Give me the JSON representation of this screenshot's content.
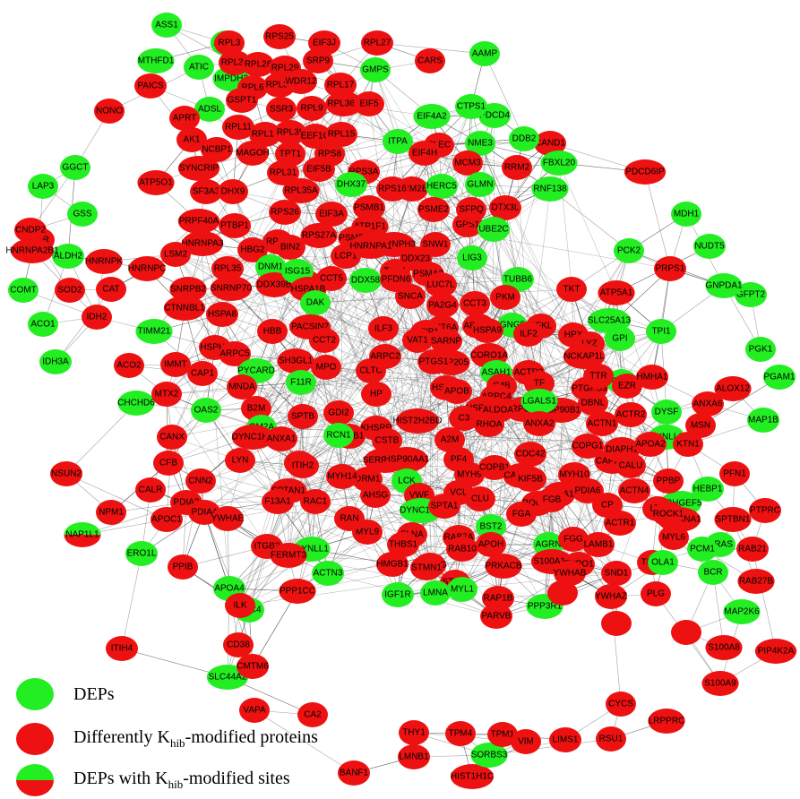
{
  "colors": {
    "red": "#ee1111",
    "green": "#22ee22",
    "edge": "#555555",
    "split_top": "#22ee22",
    "split_bottom": "#ee1111"
  },
  "legend": {
    "deps": "DEPs",
    "khib_prefix": "Differently K",
    "khib_sub": "hib",
    "khib_suffix": "-modified proteins",
    "mixed_prefix": "DEPs with K",
    "mixed_sub": "hib",
    "mixed_suffix": "-modified sites"
  },
  "nodes": [
    {
      "label": "ASS1",
      "c": "g"
    },
    {
      "label": "ADSS",
      "c": "g"
    },
    {
      "label": "MTHFD1",
      "c": "g"
    },
    {
      "label": "ATIC",
      "c": "g"
    },
    {
      "label": "PAICS",
      "c": "r"
    },
    {
      "label": "IMPDH2",
      "c": "g"
    },
    {
      "label": "ADSL",
      "c": "g"
    },
    {
      "label": "APRT",
      "c": "r"
    },
    {
      "label": "NONO",
      "c": "r"
    },
    {
      "label": "GGCT",
      "c": "g"
    },
    {
      "label": "LAP3",
      "c": "g"
    },
    {
      "label": "GSS",
      "c": "g"
    },
    {
      "label": "GSR",
      "c": "r"
    },
    {
      "label": "CNDP2",
      "c": "r"
    },
    {
      "label": "ALDH2",
      "c": "g"
    },
    {
      "label": "COMT",
      "c": "g"
    },
    {
      "label": "SOD2",
      "c": "r"
    },
    {
      "label": "ACO1",
      "c": "g"
    },
    {
      "label": "IDH2",
      "c": "r"
    },
    {
      "label": "IDH3A",
      "c": "g"
    },
    {
      "label": "CAT",
      "c": "r"
    },
    {
      "label": "ACO2",
      "c": "r"
    },
    {
      "label": "TIMM21",
      "c": "g"
    },
    {
      "label": "CHCHD6",
      "c": "g"
    },
    {
      "label": "MTX2",
      "c": "r"
    },
    {
      "label": "IMMT",
      "c": "r"
    },
    {
      "label": "NSUN2",
      "c": "r"
    },
    {
      "label": "NAP1L1",
      "c": "s"
    },
    {
      "label": "NPM1",
      "c": "r"
    },
    {
      "label": "ERO1L",
      "c": "g"
    },
    {
      "label": "PPIB",
      "c": "r"
    },
    {
      "label": "APOC1",
      "c": "r"
    },
    {
      "label": "CANX",
      "c": "r"
    },
    {
      "label": "CFB",
      "c": "r"
    },
    {
      "label": "CALR",
      "c": "r"
    },
    {
      "label": "PDIA3",
      "c": "r"
    },
    {
      "label": "PDIA4",
      "c": "r"
    },
    {
      "label": "ITIH4",
      "c": "r"
    },
    {
      "label": "APOA4",
      "c": "g"
    },
    {
      "label": "GPC4",
      "c": "g"
    },
    {
      "label": "CD38",
      "c": "r"
    },
    {
      "label": "SLC44A2",
      "c": "g"
    },
    {
      "label": "CMTM6",
      "c": "r"
    },
    {
      "label": "VAPA",
      "c": "r"
    },
    {
      "label": "CA2",
      "c": "r"
    },
    {
      "label": "THY1",
      "c": "r"
    },
    {
      "label": "TPM4",
      "c": "r"
    },
    {
      "label": "LMNB1",
      "c": "r"
    },
    {
      "label": "HIST1H1C",
      "c": "r"
    },
    {
      "label": "BANF1",
      "c": "r"
    },
    {
      "label": "SORBS3",
      "c": "g"
    },
    {
      "label": "TPM1",
      "c": "r"
    },
    {
      "label": "VIM",
      "c": "r"
    },
    {
      "label": "LIMS1",
      "c": "r"
    },
    {
      "label": "RSU1",
      "c": "r"
    },
    {
      "label": "CYCS",
      "c": "r"
    },
    {
      "label": "LRPPRC",
      "c": "r"
    },
    {
      "label": "S100A9",
      "c": "r"
    },
    {
      "label": "S100A8",
      "c": "r"
    },
    {
      "label": "PIP4K2A",
      "c": "r"
    },
    {
      "label": "MAP2K6",
      "c": "g"
    },
    {
      "label": "RAB27B",
      "c": "r"
    },
    {
      "label": "RAB21",
      "c": "r"
    },
    {
      "label": "PTPRC",
      "c": "r"
    },
    {
      "label": "MAP1B",
      "c": "g"
    },
    {
      "label": "PFN1",
      "c": "r"
    },
    {
      "label": "SPTBN1",
      "c": "r"
    },
    {
      "label": "PGAM1",
      "c": "g"
    },
    {
      "label": "PGK1",
      "c": "g"
    },
    {
      "label": "GFPT2",
      "c": "g"
    },
    {
      "label": "GNPDA1",
      "c": "g"
    },
    {
      "label": "NUDT5",
      "c": "g"
    },
    {
      "label": "MDH1",
      "c": "g"
    },
    {
      "label": "PRPS1",
      "c": "r"
    },
    {
      "label": "PCK2",
      "c": "g"
    },
    {
      "label": "PDCD6IP",
      "c": "r"
    },
    {
      "label": "PDCD4",
      "c": "g"
    },
    {
      "label": "AAMP",
      "c": "g"
    },
    {
      "label": "CAND1",
      "c": "r"
    },
    {
      "label": "DDB2",
      "c": "g"
    },
    {
      "label": "FBXL20",
      "c": "g"
    },
    {
      "label": "RNF138",
      "c": "g"
    },
    {
      "label": "DTX3L",
      "c": "r"
    },
    {
      "label": "GPS1",
      "c": "r"
    },
    {
      "label": "UBE2C",
      "c": "g"
    },
    {
      "label": "LIG3",
      "c": "g"
    },
    {
      "label": "TUBB6",
      "c": "g"
    },
    {
      "label": "GNG5",
      "c": "g"
    },
    {
      "label": "CGN",
      "c": "g"
    },
    {
      "label": "GPI",
      "c": "g"
    },
    {
      "label": "TPI1",
      "c": "g"
    },
    {
      "label": "ALOX12",
      "c": "r"
    },
    {
      "label": "ANXA6",
      "c": "r"
    },
    {
      "label": "MSN",
      "c": "r"
    },
    {
      "label": "DYSF",
      "c": "g"
    },
    {
      "label": "DYNLL2",
      "c": "g"
    },
    {
      "label": "ARHGEF5",
      "c": "g"
    },
    {
      "label": "RRAS",
      "c": "g"
    },
    {
      "label": "BCR",
      "c": "g"
    },
    {
      "label": "PCM1",
      "c": "g"
    },
    {
      "label": "RPL3",
      "c": "r"
    },
    {
      "label": "RPS25",
      "c": "r"
    },
    {
      "label": "EIF3J",
      "c": "r"
    },
    {
      "label": "RPL27",
      "c": "r"
    },
    {
      "label": "RPL30",
      "c": "r"
    },
    {
      "label": "RPL26",
      "c": "r"
    },
    {
      "label": "RPL29",
      "c": "r"
    },
    {
      "label": "SRP9",
      "c": "r"
    },
    {
      "label": "GMPS",
      "c": "g"
    },
    {
      "label": "CARS",
      "c": "r"
    },
    {
      "label": "RPL6",
      "c": "r"
    },
    {
      "label": "RPL32",
      "c": "r"
    },
    {
      "label": "WDR12",
      "c": "r"
    },
    {
      "label": "RPL17",
      "c": "r"
    },
    {
      "label": "GSPT1",
      "c": "r"
    },
    {
      "label": "SSR3",
      "c": "r"
    },
    {
      "label": "RPL9",
      "c": "r"
    },
    {
      "label": "RPL36A",
      "c": "r"
    },
    {
      "label": "EIF5",
      "c": "r"
    },
    {
      "label": "CTPS1",
      "c": "g"
    },
    {
      "label": "EIF4A2",
      "c": "g"
    },
    {
      "label": "NME3",
      "c": "g"
    },
    {
      "label": "RPL11",
      "c": "r"
    },
    {
      "label": "RPL19",
      "c": "r"
    },
    {
      "label": "RPL3L",
      "c": "r"
    },
    {
      "label": "EEF1G",
      "c": "r"
    },
    {
      "label": "RPL15",
      "c": "r"
    },
    {
      "label": "ITPA",
      "c": "g"
    },
    {
      "label": "PLEC",
      "c": "r"
    },
    {
      "label": "AK1",
      "c": "r"
    },
    {
      "label": "NCBP1",
      "c": "r"
    },
    {
      "label": "MAGOH",
      "c": "r"
    },
    {
      "label": "TPT1",
      "c": "r"
    },
    {
      "label": "RPS8",
      "c": "r"
    },
    {
      "label": "EIF4H",
      "c": "r"
    },
    {
      "label": "MCM3",
      "c": "r"
    },
    {
      "label": "RRM2",
      "c": "r"
    },
    {
      "label": "SYNCRIP",
      "c": "r"
    },
    {
      "label": "RPL31",
      "c": "r"
    },
    {
      "label": "EIF5B",
      "c": "r"
    },
    {
      "label": "RPS3A",
      "c": "r"
    },
    {
      "label": "RRM2B",
      "c": "r"
    },
    {
      "label": "SF3A3",
      "c": "r"
    },
    {
      "label": "DHX9",
      "c": "r"
    },
    {
      "label": "RPL35A",
      "c": "r"
    },
    {
      "label": "DHX37",
      "c": "g"
    },
    {
      "label": "RPS16",
      "c": "r"
    },
    {
      "label": "HERC5",
      "c": "g"
    },
    {
      "label": "GLMN",
      "c": "g"
    },
    {
      "label": "ATP5O1",
      "c": "r"
    },
    {
      "label": "PRPF40A",
      "c": "r"
    },
    {
      "label": "RPS26",
      "c": "r"
    },
    {
      "label": "EIF3A",
      "c": "r"
    },
    {
      "label": "PSMB1",
      "c": "r"
    },
    {
      "label": "PSME2",
      "c": "r"
    },
    {
      "label": "SFPQ",
      "c": "r"
    },
    {
      "label": "HNRNPA3",
      "c": "r"
    },
    {
      "label": "PTBP1",
      "c": "r"
    },
    {
      "label": "RPS9",
      "c": "r"
    },
    {
      "label": "RPS27A",
      "c": "r"
    },
    {
      "label": "ATP1F1",
      "c": "r"
    },
    {
      "label": "HNRNPA2B1",
      "c": "r"
    },
    {
      "label": "LSM2",
      "c": "r"
    },
    {
      "label": "HBG2",
      "c": "r"
    },
    {
      "label": "BIN2",
      "c": "r"
    },
    {
      "label": "PSMB10",
      "c": "r"
    },
    {
      "label": "HNRNPH3",
      "c": "r"
    },
    {
      "label": "SNW1",
      "c": "r"
    },
    {
      "label": "HNRNPK",
      "c": "r"
    },
    {
      "label": "HNRNPC",
      "c": "r"
    },
    {
      "label": "RPL35",
      "c": "r"
    },
    {
      "label": "DNM1",
      "c": "g"
    },
    {
      "label": "LCP1",
      "c": "r"
    },
    {
      "label": "HNRNPA1",
      "c": "r"
    },
    {
      "label": "DDX23",
      "c": "r"
    },
    {
      "label": "HBA1",
      "c": "r"
    },
    {
      "label": "CCT5",
      "c": "r"
    },
    {
      "label": "TCP1",
      "c": "r"
    },
    {
      "label": "PSMA3",
      "c": "r"
    },
    {
      "label": "LUC7L",
      "c": "r"
    },
    {
      "label": "SNRPB2",
      "c": "r"
    },
    {
      "label": "SNRNP70",
      "c": "r"
    },
    {
      "label": "DDX39B",
      "c": "r"
    },
    {
      "label": "ISG15",
      "c": "g"
    },
    {
      "label": "DDX58",
      "c": "g"
    },
    {
      "label": "PFDN6",
      "c": "r"
    },
    {
      "label": "SNCA",
      "c": "r"
    },
    {
      "label": "CCT3",
      "c": "r"
    },
    {
      "label": "PKM",
      "c": "r"
    },
    {
      "label": "TKT",
      "c": "r"
    },
    {
      "label": "ATP5A1",
      "c": "r"
    },
    {
      "label": "CTNNBL1",
      "c": "r"
    },
    {
      "label": "HSPA8",
      "c": "r"
    },
    {
      "label": "HSPA1B",
      "c": "r"
    },
    {
      "label": "DAK",
      "c": "g"
    },
    {
      "label": "PA2G4",
      "c": "r"
    },
    {
      "label": "CCT6A",
      "c": "r"
    },
    {
      "label": "ARPC3",
      "c": "r"
    },
    {
      "label": "PFKL",
      "c": "r"
    },
    {
      "label": "SLC25A13",
      "c": "g"
    },
    {
      "label": "HSPH1",
      "c": "r"
    },
    {
      "label": "HBB",
      "c": "r"
    },
    {
      "label": "PACSIN2",
      "c": "r"
    },
    {
      "label": "ILF3",
      "c": "r"
    },
    {
      "label": "STIP1",
      "c": "r"
    },
    {
      "label": "ARPC5",
      "c": "r"
    },
    {
      "label": "CCT2",
      "c": "r"
    },
    {
      "label": "VAT1",
      "c": "r"
    },
    {
      "label": "SARNP",
      "c": "r"
    },
    {
      "label": "HSPA9",
      "c": "r"
    },
    {
      "label": "ILF2",
      "c": "r"
    },
    {
      "label": "HPX",
      "c": "r"
    },
    {
      "label": "LYZ",
      "c": "r"
    },
    {
      "label": "CAP1",
      "c": "r"
    },
    {
      "label": "PYCARD",
      "c": "g"
    },
    {
      "label": "SH3GL1",
      "c": "r"
    },
    {
      "label": "CLTC",
      "c": "r"
    },
    {
      "label": "ARPC2",
      "c": "r"
    },
    {
      "label": "NUP205",
      "c": "r"
    },
    {
      "label": "CORO1A",
      "c": "r"
    },
    {
      "label": "ASAH1",
      "c": "g"
    },
    {
      "label": "ACTR3",
      "c": "r"
    },
    {
      "label": "NCKAP1L",
      "c": "r"
    },
    {
      "label": "MNDA",
      "c": "r"
    },
    {
      "label": "F11R",
      "c": "g"
    },
    {
      "label": "MPO",
      "c": "r"
    },
    {
      "label": "PTGS1",
      "c": "r"
    },
    {
      "label": "HSPA5",
      "c": "r"
    },
    {
      "label": "C4B",
      "c": "r"
    },
    {
      "label": "TF",
      "c": "r"
    },
    {
      "label": "PTGES3",
      "c": "r"
    },
    {
      "label": "TTR",
      "c": "r"
    },
    {
      "label": "OAS2",
      "c": "g"
    },
    {
      "label": "B2M",
      "c": "r"
    },
    {
      "label": "HP",
      "c": "r"
    },
    {
      "label": "APOB",
      "c": "r"
    },
    {
      "label": "ARPC4",
      "c": "r"
    },
    {
      "label": "ARPC1B",
      "c": "r"
    },
    {
      "label": "HSP90B1",
      "c": "r"
    },
    {
      "label": "GM2A",
      "c": "g"
    },
    {
      "label": "SPTB",
      "c": "r"
    },
    {
      "label": "GDI2",
      "c": "r"
    },
    {
      "label": "KHSRP",
      "c": "r"
    },
    {
      "label": "HIST2H2BD",
      "c": "r"
    },
    {
      "label": "HSP90B1",
      "c": "r"
    },
    {
      "label": "LGALS1",
      "c": "g"
    },
    {
      "label": "DBNL",
      "c": "r"
    },
    {
      "label": "EZR",
      "c": "r"
    },
    {
      "label": "ACTR2",
      "c": "r"
    },
    {
      "label": "HMHA1",
      "c": "r"
    },
    {
      "label": "DYNC1H1",
      "c": "r"
    },
    {
      "label": "ANXA1",
      "c": "r"
    },
    {
      "label": "KPNB1",
      "c": "r"
    },
    {
      "label": "CSTB",
      "c": "r"
    },
    {
      "label": "A2M",
      "c": "r"
    },
    {
      "label": "C3",
      "c": "r"
    },
    {
      "label": "ALDOA",
      "c": "r"
    },
    {
      "label": "ANXA2",
      "c": "r"
    },
    {
      "label": "ACTN1",
      "c": "r"
    },
    {
      "label": "CAP2A2",
      "c": "r"
    },
    {
      "label": "LYN",
      "c": "r"
    },
    {
      "label": "P4HB",
      "c": "r"
    },
    {
      "label": "RCN1",
      "c": "g"
    },
    {
      "label": "SERPING1",
      "c": "r"
    },
    {
      "label": "HSP90AA1",
      "c": "r"
    },
    {
      "label": "PF4",
      "c": "r"
    },
    {
      "label": "RHOA",
      "c": "r"
    },
    {
      "label": "CDC42",
      "c": "r"
    },
    {
      "label": "COPG1",
      "c": "r"
    },
    {
      "label": "DIAPH1",
      "c": "r"
    },
    {
      "label": "APOA2",
      "c": "r"
    },
    {
      "label": "KTN1",
      "c": "r"
    },
    {
      "label": "CNN2",
      "c": "r"
    },
    {
      "label": "ITIH2",
      "c": "r"
    },
    {
      "label": "ORM1",
      "c": "r"
    },
    {
      "label": "LCK",
      "c": "g"
    },
    {
      "label": "MYH9",
      "c": "r"
    },
    {
      "label": "COPB1",
      "c": "r"
    },
    {
      "label": "CAPZA1",
      "c": "r"
    },
    {
      "label": "MYH10",
      "c": "r"
    },
    {
      "label": "PDIA6",
      "c": "r"
    },
    {
      "label": "CALU",
      "c": "r"
    },
    {
      "label": "ACTN4",
      "c": "r"
    },
    {
      "label": "PPBP",
      "c": "r"
    },
    {
      "label": "HEBP1",
      "c": "g"
    },
    {
      "label": "SPTAN1",
      "c": "r"
    },
    {
      "label": "MYH14",
      "c": "r"
    },
    {
      "label": "AHSG",
      "c": "r"
    },
    {
      "label": "VWF",
      "c": "r"
    },
    {
      "label": "VCL",
      "c": "r"
    },
    {
      "label": "CLU",
      "c": "r"
    },
    {
      "label": "KIF5B",
      "c": "r"
    },
    {
      "label": "ROCK2",
      "c": "r"
    },
    {
      "label": "APOA1",
      "c": "r"
    },
    {
      "label": "CP",
      "c": "r"
    },
    {
      "label": "LTF",
      "c": "r"
    },
    {
      "label": "SERPINA1",
      "c": "r"
    },
    {
      "label": "F13A1",
      "c": "r"
    },
    {
      "label": "RAC1",
      "c": "r"
    },
    {
      "label": "DYNC1LI2",
      "c": "g"
    },
    {
      "label": "SPTA1",
      "c": "r"
    },
    {
      "label": "BST2",
      "c": "g"
    },
    {
      "label": "FGA",
      "c": "r"
    },
    {
      "label": "FGB",
      "c": "r"
    },
    {
      "label": "ACTR1",
      "c": "r"
    },
    {
      "label": "ROCK1",
      "c": "r"
    },
    {
      "label": "DYNLL1",
      "c": "g"
    },
    {
      "label": "MYL9",
      "c": "r"
    },
    {
      "label": "FLNA",
      "c": "r"
    },
    {
      "label": "RAB7A",
      "c": "r"
    },
    {
      "label": "APOH",
      "c": "r"
    },
    {
      "label": "AGRN",
      "c": "g"
    },
    {
      "label": "FGG",
      "c": "r"
    },
    {
      "label": "LAMB1",
      "c": "r"
    },
    {
      "label": "TLN1",
      "c": "r"
    },
    {
      "label": "MYL6",
      "c": "r"
    },
    {
      "label": "YWHAE",
      "c": "r"
    },
    {
      "label": "RAN",
      "c": "r"
    },
    {
      "label": "THBS1",
      "c": "r"
    },
    {
      "label": "YWHAG",
      "c": "r"
    },
    {
      "label": "RAB10",
      "c": "r"
    },
    {
      "label": "PRKACB",
      "c": "r"
    },
    {
      "label": "S100A12",
      "c": "r"
    },
    {
      "label": "TNPO1",
      "c": "r"
    },
    {
      "label": "SND1",
      "c": "r"
    },
    {
      "label": "OLA1",
      "c": "g"
    },
    {
      "label": "ITGB3",
      "c": "r"
    },
    {
      "label": "FERMT3",
      "c": "r"
    },
    {
      "label": "ACTN3",
      "c": "g"
    },
    {
      "label": "HMGB1",
      "c": "r"
    },
    {
      "label": "STMN1",
      "c": "r"
    },
    {
      "label": "STOM",
      "c": "r"
    },
    {
      "label": "RAP1B",
      "c": "r"
    },
    {
      "label": "YWHAB",
      "c": "r"
    },
    {
      "label": "YWHAZ",
      "c": "r"
    },
    {
      "label": "PLG",
      "c": "r"
    },
    {
      "label": "ILK",
      "c": "r"
    },
    {
      "label": "PPP1CC",
      "c": "r"
    },
    {
      "label": "IGF1R",
      "c": "g"
    },
    {
      "label": "LMNA",
      "c": "g"
    },
    {
      "label": "MYL1",
      "c": "g"
    },
    {
      "label": "PARVB",
      "c": "r"
    },
    {
      "label": "PPP3R1",
      "c": "g"
    },
    {
      "label": "",
      "c": "r"
    },
    {
      "label": "",
      "c": "r"
    },
    {
      "label": "",
      "c": "r"
    }
  ]
}
